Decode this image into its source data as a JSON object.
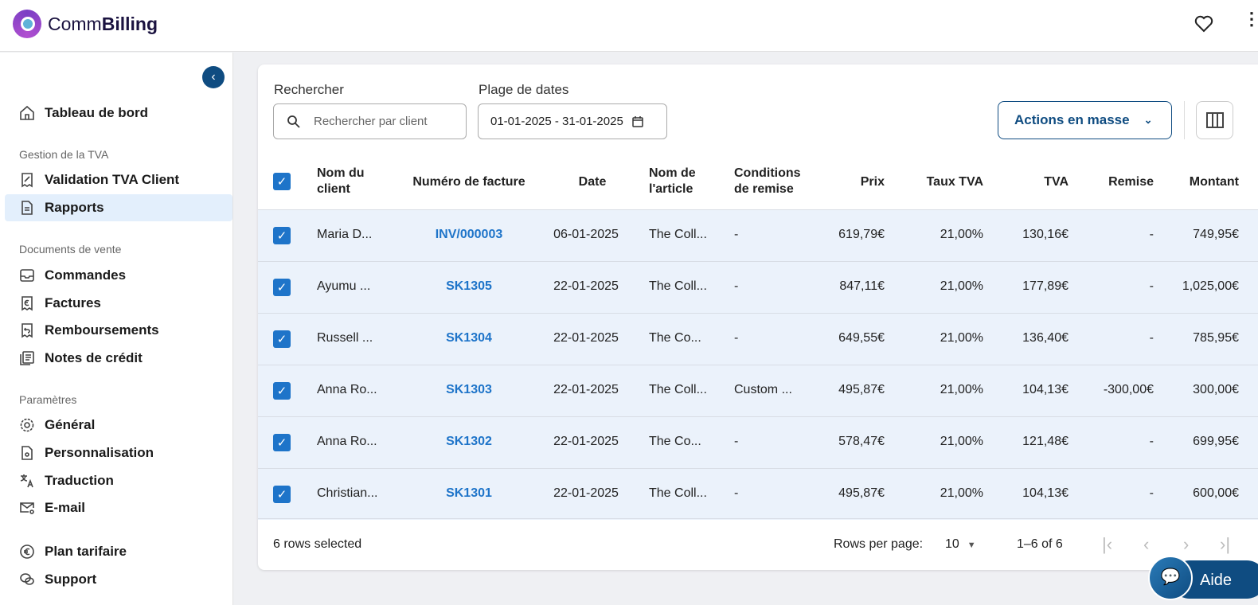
{
  "header": {
    "brand_prefix": "Comm",
    "brand_suffix": "Billing"
  },
  "sidebar": {
    "dashboard": "Tableau de bord",
    "section_tva": "Gestion de la TVA",
    "validation": "Validation TVA Client",
    "reports": "Rapports",
    "section_sales": "Documents de vente",
    "orders": "Commandes",
    "invoices": "Factures",
    "refunds": "Remboursements",
    "credit_notes": "Notes de crédit",
    "section_settings": "Paramètres",
    "general": "Général",
    "customization": "Personnalisation",
    "translation": "Traduction",
    "email": "E-mail",
    "plan": "Plan tarifaire",
    "support": "Support"
  },
  "filters": {
    "search_label": "Rechercher",
    "search_placeholder": "Rechercher par client",
    "date_label": "Plage de dates",
    "date_value": "01-01-2025 - 31-01-2025",
    "bulk_actions": "Actions en masse"
  },
  "table": {
    "headers": {
      "name": "Nom du client",
      "invoice": "Numéro de facture",
      "date": "Date",
      "article": "Nom de l'article",
      "conditions": "Conditions de remise",
      "price": "Prix",
      "rate": "Taux TVA",
      "tva": "TVA",
      "discount": "Remise",
      "amount": "Montant"
    },
    "rows": [
      {
        "name": "Maria D...",
        "invoice": "INV/000003",
        "date": "06-01-2025",
        "article": "The Coll...",
        "conditions": "-",
        "price": "619,79€",
        "rate": "21,00%",
        "tva": "130,16€",
        "discount": "-",
        "amount": "749,95€"
      },
      {
        "name": "Ayumu ...",
        "invoice": "SK1305",
        "date": "22-01-2025",
        "article": "The Coll...",
        "conditions": "-",
        "price": "847,11€",
        "rate": "21,00%",
        "tva": "177,89€",
        "discount": "-",
        "amount": "1,025,00€"
      },
      {
        "name": "Russell ...",
        "invoice": "SK1304",
        "date": "22-01-2025",
        "article": "The Co...",
        "conditions": "-",
        "price": "649,55€",
        "rate": "21,00%",
        "tva": "136,40€",
        "discount": "-",
        "amount": "785,95€"
      },
      {
        "name": "Anna Ro...",
        "invoice": "SK1303",
        "date": "22-01-2025",
        "article": "The Coll...",
        "conditions": "Custom ...",
        "price": "495,87€",
        "rate": "21,00%",
        "tva": "104,13€",
        "discount": "-300,00€",
        "amount": "300,00€"
      },
      {
        "name": "Anna Ro...",
        "invoice": "SK1302",
        "date": "22-01-2025",
        "article": "The Co...",
        "conditions": "-",
        "price": "578,47€",
        "rate": "21,00%",
        "tva": "121,48€",
        "discount": "-",
        "amount": "699,95€"
      },
      {
        "name": "Christian...",
        "invoice": "SK1301",
        "date": "22-01-2025",
        "article": "The Coll...",
        "conditions": "-",
        "price": "495,87€",
        "rate": "21,00%",
        "tva": "104,13€",
        "discount": "-",
        "amount": "600,00€"
      }
    ]
  },
  "footer": {
    "selected": "6 rows selected",
    "rows_per_page_label": "Rows per page:",
    "rows_per_page": "10",
    "range": "1–6 of 6"
  },
  "help": {
    "label": "Aide"
  },
  "colors": {
    "accent": "#1e74c9",
    "brand_dark": "#0f4c81",
    "active_bg": "#e3effc"
  }
}
